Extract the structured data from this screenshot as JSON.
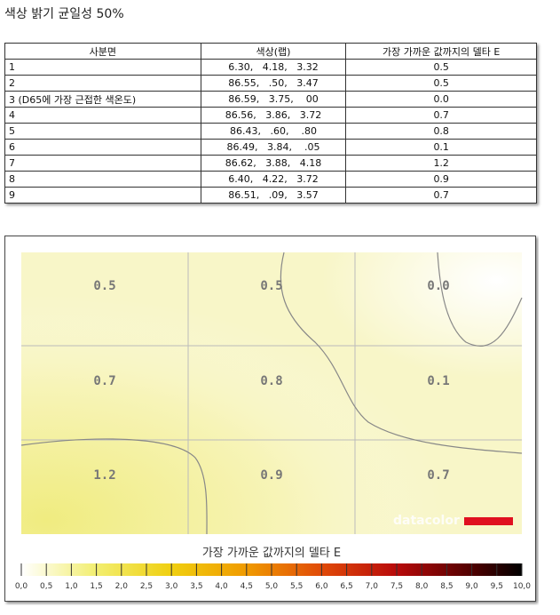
{
  "title": "색상 밝기 균일성 50%",
  "table": {
    "header": [
      "사분면",
      "색상(랩)",
      "가장 가까운 값까지의 델타 E"
    ],
    "rows": [
      [
        "1",
        "6.30,   4.18,   3.32",
        "0.5"
      ],
      [
        "2",
        "86.55,   .50,   3.47",
        "0.5"
      ],
      [
        "3 (D65에 가장 근접한 색온도)",
        "86.59,   3.75,    00",
        "0.0"
      ],
      [
        "4",
        "86.56,   3.86,   3.72",
        "0.7"
      ],
      [
        "5",
        "86.43,   .60,    .80",
        "0.8"
      ],
      [
        "6",
        "86.49,   3.84,    .05",
        "0.1"
      ],
      [
        "7",
        "86.62,   3.88,   4.18",
        "1.2"
      ],
      [
        "8",
        "6.40,   4.22,   3.72",
        "0.9"
      ],
      [
        "9",
        "86.51,   .09,   3.57",
        "0.7"
      ]
    ]
  },
  "heatmap": {
    "cells": [
      [
        "0.5",
        "0.5",
        "0.0"
      ],
      [
        "0.7",
        "0.8",
        "0.1"
      ],
      [
        "1.2",
        "0.9",
        "0.7"
      ]
    ],
    "logo": "datacolor",
    "legend_title": "가장 가까운 값까지의 델타 E",
    "legend_ticks": [
      "0,0",
      "0,5",
      "1,0",
      "1,5",
      "2,0",
      "2,5",
      "3,0",
      "3,5",
      "4,0",
      "4,5",
      "5,0",
      "5,5",
      "6,0",
      "6,5",
      "7,0",
      "7,5",
      "8,0",
      "8,5",
      "9,0",
      "9,5",
      "10,0"
    ]
  }
}
